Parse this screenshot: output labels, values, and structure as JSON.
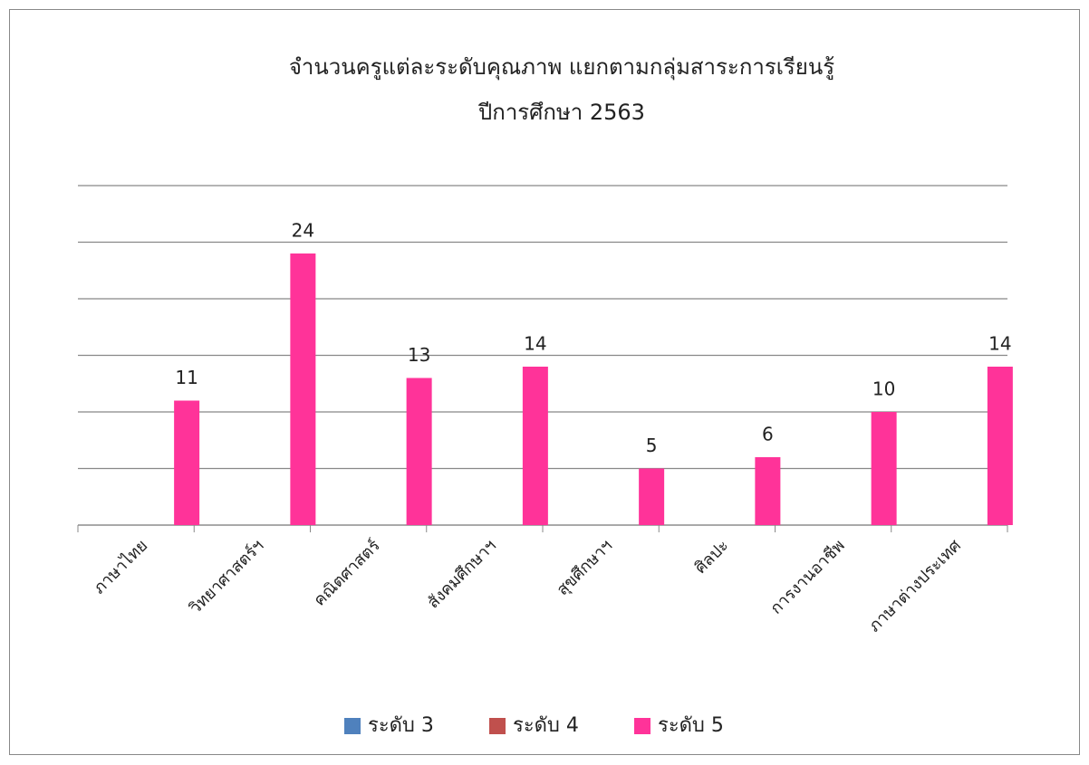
{
  "chart_data": {
    "type": "bar",
    "title": "จำนวนครูแต่ละระดับคุณภาพ แยกตามกลุ่มสาระการเรียนรู้",
    "subtitle": "ปีการศึกษา 2563",
    "categories": [
      "ภาษาไทย",
      "วิทยาศาสตร์ฯ",
      "คณิตศาสตร์",
      "สังคมศึกษาฯ",
      "สุขศึกษาฯ",
      "ศิลปะ",
      "การงานอาชีพ",
      "ภาษาต่างประเทศ"
    ],
    "series": [
      {
        "name": "ระดับ 3",
        "color": "#4f81bd",
        "values": [
          null,
          null,
          null,
          null,
          null,
          null,
          null,
          null
        ]
      },
      {
        "name": "ระดับ 4",
        "color": "#c0504d",
        "values": [
          null,
          null,
          null,
          null,
          null,
          null,
          null,
          null
        ]
      },
      {
        "name": "ระดับ 5",
        "color": "#ff3399",
        "values": [
          11,
          24,
          13,
          14,
          5,
          6,
          10,
          14
        ]
      }
    ],
    "ylim": [
      0,
      30
    ],
    "yticks": [
      0,
      5,
      10,
      15,
      20,
      25,
      30
    ],
    "grid": true,
    "legend": "bottom"
  }
}
